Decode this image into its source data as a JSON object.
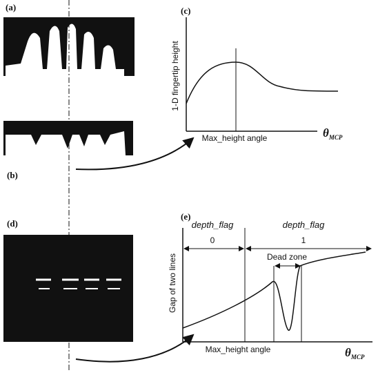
{
  "panels": {
    "a": {
      "label": "(a)"
    },
    "b": {
      "label": "(b)"
    },
    "c": {
      "label": "(c)",
      "y_axis_label": "1-D fingertip height",
      "x_marker_label": "Max_height angle",
      "x_axis_symbol": "θ",
      "x_axis_subscript": "MCP"
    },
    "d": {
      "label": "(d)"
    },
    "e": {
      "label": "(e)",
      "y_axis_label": "Gap of two lines",
      "x_marker_label": "Max_height angle",
      "x_axis_symbol": "θ",
      "x_axis_subscript": "MCP",
      "flag_left": {
        "name": "depth_flag",
        "value": "0"
      },
      "flag_right": {
        "name": "depth_flag",
        "value": "1"
      },
      "zone_label": "Dead zone"
    }
  }
}
